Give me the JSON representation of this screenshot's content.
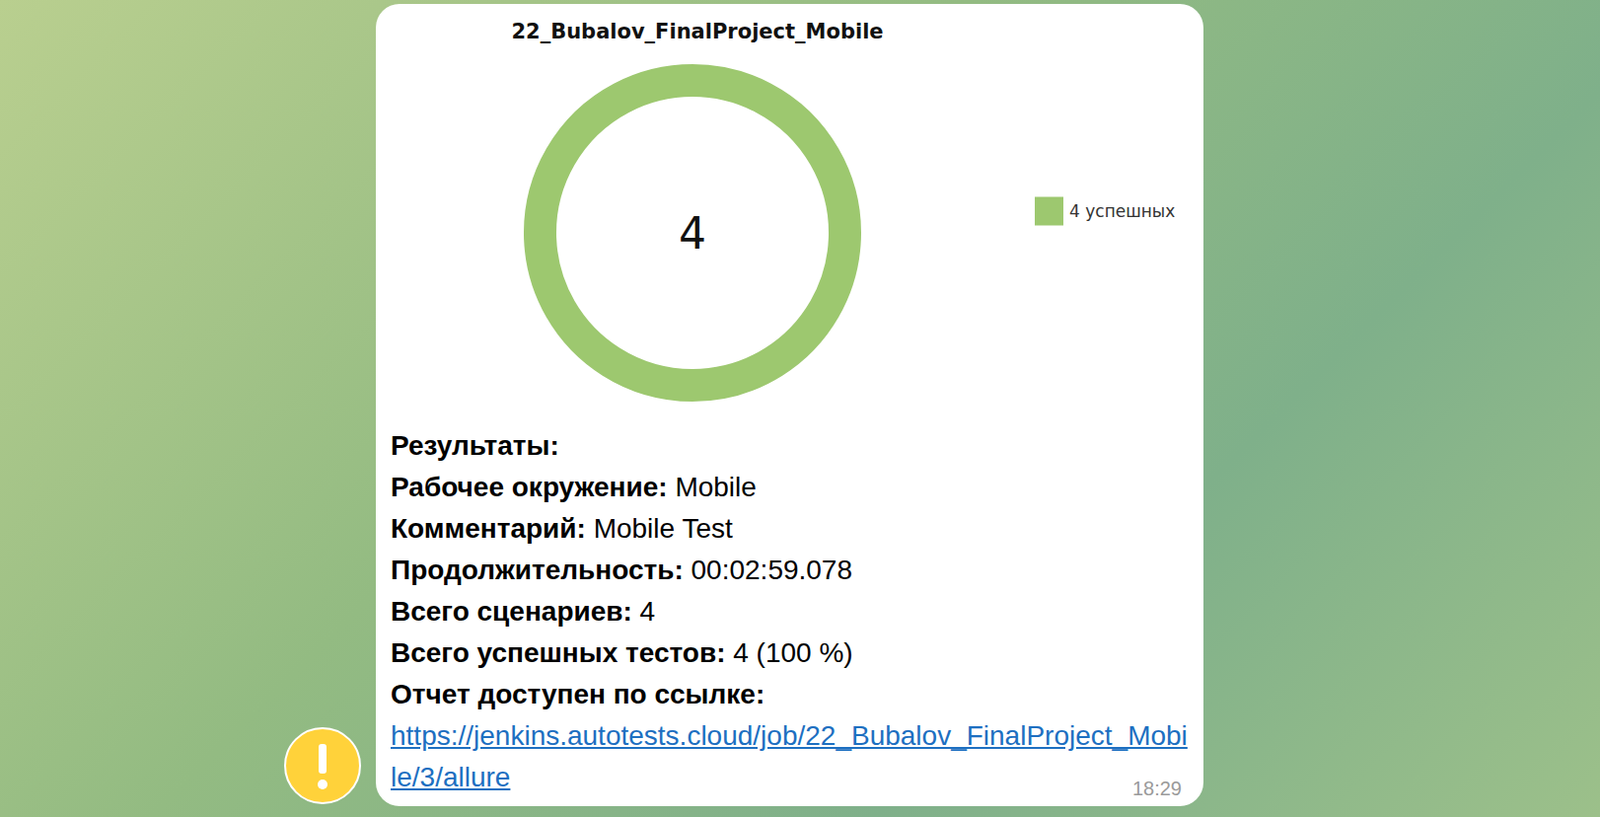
{
  "chart_data": {
    "type": "pie",
    "title": "22_Bubalov_FinalProject_Mobile",
    "categories": [
      "4 успешных"
    ],
    "values": [
      4
    ],
    "colors": [
      "#9dc86f"
    ],
    "total": 4,
    "legend": "right"
  },
  "message": {
    "heading": "Результаты:",
    "fields": [
      {
        "label": "Рабочее окружение:",
        "value": "Mobile"
      },
      {
        "label": "Комментарий:",
        "value": "Mobile Test"
      },
      {
        "label": "Продолжительность:",
        "value": "00:02:59.078"
      },
      {
        "label": "Всего сценариев:",
        "value": "4"
      },
      {
        "label": "Всего успешных тестов:",
        "value": "4 (100 %)"
      }
    ],
    "link_label": "Отчет доступен по ссылке:",
    "link": "https://jenkins.autotests.cloud/job/22_Bubalov_FinalProject_Mobile/3/allure",
    "time": "18:29"
  }
}
